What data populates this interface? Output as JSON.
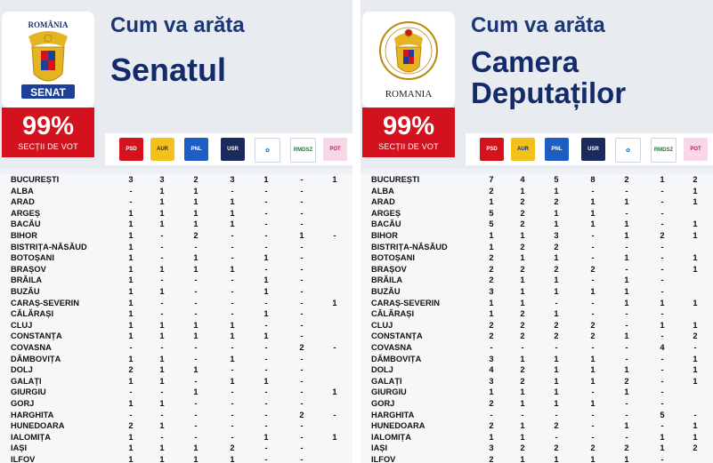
{
  "columns": [
    "PSD",
    "AUR",
    "PNL",
    "USR",
    "SOS",
    "RMDSZ",
    "POT"
  ],
  "party_logos": [
    {
      "label": "PSD",
      "bg": "#d4121d",
      "fg": "#ffffff",
      "icon": "rose-icon"
    },
    {
      "label": "AUR",
      "bg": "#f3c21a",
      "fg": "#1b2c60",
      "icon": "aur-icon"
    },
    {
      "label": "PNL",
      "bg": "#1e5ec4",
      "fg": "#ffffff",
      "icon": "pnl-arrow-icon"
    },
    {
      "label": "USR",
      "bg": "#1a2a5c",
      "fg": "#ffffff",
      "icon": "usr-icon"
    },
    {
      "label": "",
      "bg": "#ffffff",
      "fg": "#2a83c4",
      "icon": "sos-flower-icon"
    },
    {
      "label": "RMDSZ",
      "bg": "#ffffff",
      "fg": "#1a7b3a",
      "icon": "tulip-icon"
    },
    {
      "label": "POT",
      "bg": "#f6d8e8",
      "fg": "#c2185b",
      "icon": "pot-icon"
    }
  ],
  "senat": {
    "subtitle": "Cum va arăta",
    "title_lines": [
      "Senatul"
    ],
    "emblem": {
      "top_text": "ROMÂNIA",
      "bottom_text": "SENAT"
    },
    "percent": "99%",
    "percent_label": "SECȚII DE VOT",
    "rows": [
      [
        "BUCUREȘTI",
        "3",
        "3",
        "2",
        "3",
        "1",
        "-",
        "1"
      ],
      [
        "ALBA",
        "-",
        "1",
        "1",
        "-",
        "-",
        "-",
        ""
      ],
      [
        "ARAD",
        "-",
        "1",
        "1",
        "1",
        "-",
        "-",
        ""
      ],
      [
        "ARGEȘ",
        "1",
        "1",
        "1",
        "1",
        "-",
        "-",
        ""
      ],
      [
        "BACĂU",
        "1",
        "1",
        "1",
        "1",
        "-",
        "-",
        ""
      ],
      [
        "BIHOR",
        "1",
        "-",
        "2",
        "-",
        "-",
        "1",
        "-"
      ],
      [
        "BISTRIȚA-NĂSĂUD",
        "1",
        "-",
        "-",
        "-",
        "-",
        "-",
        ""
      ],
      [
        "BOTOȘANI",
        "1",
        "-",
        "1",
        "-",
        "1",
        "-",
        ""
      ],
      [
        "BRAȘOV",
        "1",
        "1",
        "1",
        "1",
        "-",
        "-",
        ""
      ],
      [
        "BRĂILA",
        "1",
        "-",
        "-",
        "-",
        "1",
        "-",
        ""
      ],
      [
        "BUZĂU",
        "1",
        "1",
        "-",
        "-",
        "1",
        "-",
        ""
      ],
      [
        "CARAȘ-SEVERIN",
        "1",
        "-",
        "-",
        "-",
        "-",
        "-",
        "1"
      ],
      [
        "CĂLĂRAȘI",
        "1",
        "-",
        "-",
        "-",
        "1",
        "-",
        ""
      ],
      [
        "CLUJ",
        "1",
        "1",
        "1",
        "1",
        "-",
        "-",
        ""
      ],
      [
        "CONSTANȚA",
        "1",
        "1",
        "1",
        "1",
        "1",
        "-",
        ""
      ],
      [
        "COVASNA",
        "-",
        "-",
        "-",
        "-",
        "-",
        "2",
        "-"
      ],
      [
        "DÂMBOVIȚA",
        "1",
        "1",
        "-",
        "1",
        "-",
        "-",
        ""
      ],
      [
        "DOLJ",
        "2",
        "1",
        "1",
        "-",
        "-",
        "-",
        ""
      ],
      [
        "GALAȚI",
        "1",
        "1",
        "-",
        "1",
        "1",
        "-",
        ""
      ],
      [
        "GIURGIU",
        "-",
        "-",
        "1",
        "-",
        "-",
        "-",
        "1"
      ],
      [
        "GORJ",
        "1",
        "1",
        "-",
        "-",
        "-",
        "-",
        ""
      ],
      [
        "HARGHITA",
        "-",
        "-",
        "-",
        "-",
        "-",
        "2",
        "-"
      ],
      [
        "HUNEDOARA",
        "2",
        "1",
        "-",
        "-",
        "-",
        "-",
        ""
      ],
      [
        "IALOMIȚA",
        "1",
        "-",
        "-",
        "-",
        "1",
        "-",
        "1"
      ],
      [
        "IAȘI",
        "1",
        "1",
        "1",
        "2",
        "-",
        "-",
        ""
      ],
      [
        "ILFOV",
        "1",
        "1",
        "1",
        "1",
        "-",
        "-",
        ""
      ]
    ]
  },
  "camera": {
    "subtitle": "Cum va arăta",
    "title_lines": [
      "Camera",
      "Deputaților"
    ],
    "emblem": {
      "top_text": "",
      "bottom_text": "ROMANIA"
    },
    "percent": "99%",
    "percent_label": "SECȚII DE VOT",
    "rows": [
      [
        "BUCUREȘTI",
        "7",
        "4",
        "5",
        "8",
        "2",
        "1",
        "2"
      ],
      [
        "ALBA",
        "2",
        "1",
        "1",
        "-",
        "-",
        "-",
        "1"
      ],
      [
        "ARAD",
        "1",
        "2",
        "2",
        "1",
        "1",
        "-",
        "1"
      ],
      [
        "ARGEȘ",
        "5",
        "2",
        "1",
        "1",
        "-",
        "-",
        ""
      ],
      [
        "BACĂU",
        "5",
        "2",
        "1",
        "1",
        "1",
        "-",
        "1"
      ],
      [
        "BIHOR",
        "1",
        "1",
        "3",
        "-",
        "1",
        "2",
        "1"
      ],
      [
        "BISTRIȚA-NĂSĂUD",
        "1",
        "2",
        "2",
        "-",
        "-",
        "-",
        ""
      ],
      [
        "BOTOȘANI",
        "2",
        "1",
        "1",
        "-",
        "1",
        "-",
        "1"
      ],
      [
        "BRAȘOV",
        "2",
        "2",
        "2",
        "2",
        "-",
        "-",
        "1"
      ],
      [
        "BRĂILA",
        "2",
        "1",
        "1",
        "-",
        "1",
        "-",
        ""
      ],
      [
        "BUZĂU",
        "3",
        "1",
        "1",
        "1",
        "1",
        "-",
        ""
      ],
      [
        "CARAȘ-SEVERIN",
        "1",
        "1",
        "-",
        "-",
        "1",
        "1",
        "1"
      ],
      [
        "CĂLĂRAȘI",
        "1",
        "2",
        "1",
        "-",
        "-",
        "-",
        ""
      ],
      [
        "CLUJ",
        "2",
        "2",
        "2",
        "2",
        "-",
        "1",
        "1"
      ],
      [
        "CONSTANȚA",
        "2",
        "2",
        "2",
        "2",
        "1",
        "-",
        "2"
      ],
      [
        "COVASNA",
        "-",
        "-",
        "-",
        "-",
        "-",
        "4",
        "-"
      ],
      [
        "DÂMBOVIȚA",
        "3",
        "1",
        "1",
        "1",
        "-",
        "-",
        "1"
      ],
      [
        "DOLJ",
        "4",
        "2",
        "1",
        "1",
        "1",
        "-",
        "1"
      ],
      [
        "GALAȚI",
        "3",
        "2",
        "1",
        "1",
        "2",
        "-",
        "1"
      ],
      [
        "GIURGIU",
        "1",
        "1",
        "1",
        "-",
        "1",
        "-",
        ""
      ],
      [
        "GORJ",
        "2",
        "1",
        "1",
        "1",
        "-",
        "-",
        ""
      ],
      [
        "HARGHITA",
        "-",
        "-",
        "-",
        "-",
        "-",
        "5",
        "-"
      ],
      [
        "HUNEDOARA",
        "2",
        "1",
        "2",
        "-",
        "1",
        "-",
        "1"
      ],
      [
        "IALOMIȚA",
        "1",
        "1",
        "-",
        "-",
        "-",
        "1",
        "1"
      ],
      [
        "IAȘI",
        "3",
        "2",
        "2",
        "2",
        "2",
        "1",
        "2"
      ],
      [
        "ILFOV",
        "2",
        "1",
        "1",
        "1",
        "1",
        "-",
        ""
      ]
    ]
  }
}
